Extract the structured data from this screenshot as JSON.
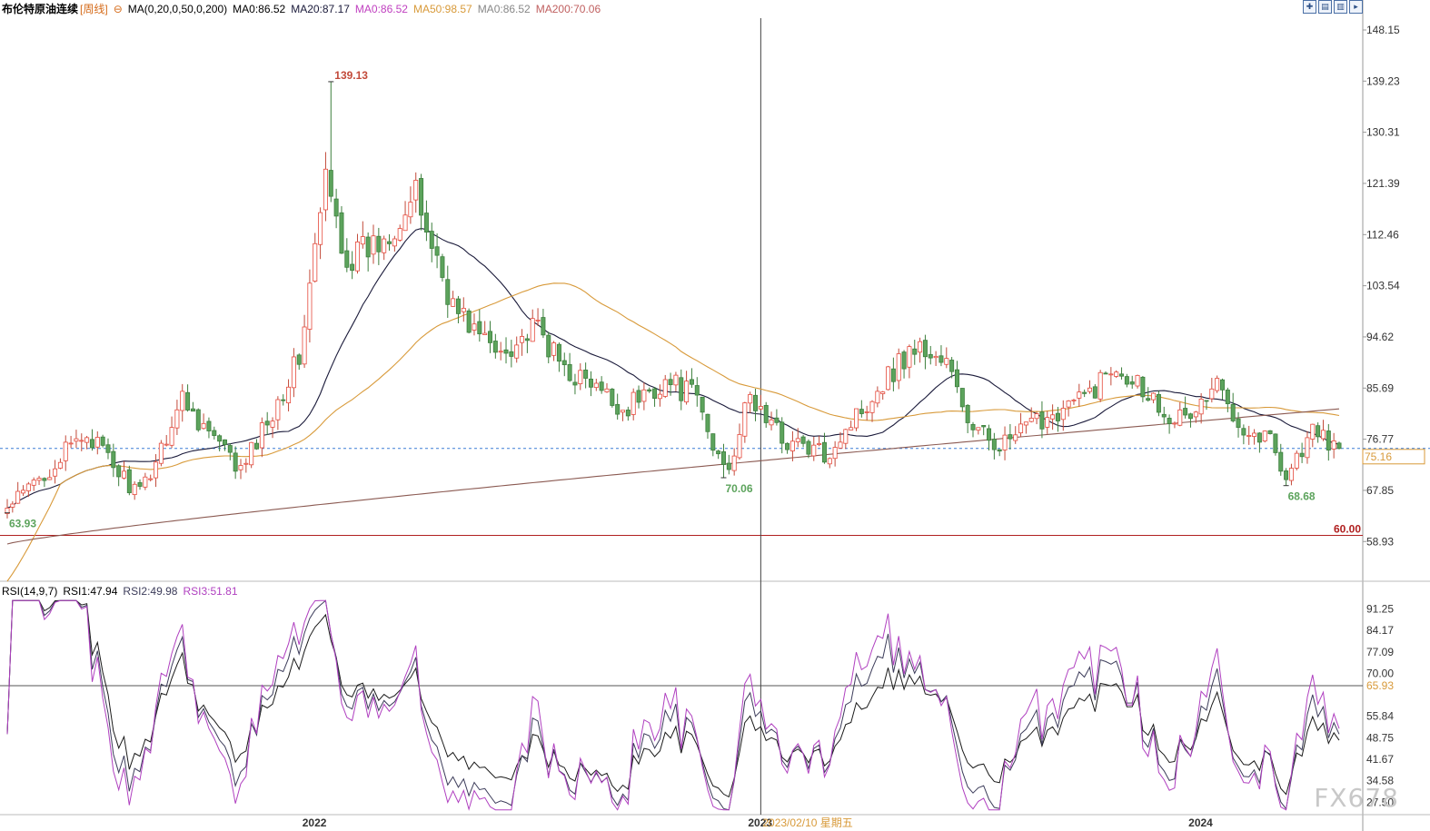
{
  "legend_main": {
    "name": "布伦特原油连续",
    "period": "[周线]",
    "ma_spec": "MA(0,20,0,50,0,200)",
    "ma0": "MA0:86.52",
    "ma20": "MA20:87.17",
    "ma0b": "MA0:86.52",
    "ma50": "MA50:98.57",
    "ma0c": "MA0:86.52",
    "ma200": "MA200:70.06"
  },
  "legend_rsi": {
    "spec": "RSI(14,9,7)",
    "rsi1": "RSI1:47.94",
    "rsi2": "RSI2:49.98",
    "rsi3": "RSI3:51.81"
  },
  "toolbar": {
    "icons": [
      "expand-icon",
      "layout-icon",
      "layout-icon-2",
      "arrow-right-icon"
    ]
  },
  "annotations": {
    "high": "139.13",
    "low_start": "63.93",
    "low_mid": "70.06",
    "low_end": "68.68",
    "hline_label": "60.00",
    "current_price": "75.16",
    "crosshair_date": "2023/02/10 星期五"
  },
  "watermark": "FX678",
  "colors": {
    "up": "#e6493b",
    "down": "#5ca35c",
    "ma20": "#1a1a3a",
    "ma50": "#d89a3a",
    "ma200": "#8b5a52",
    "hline": "#b02020",
    "rsi1": "#1a1a1a",
    "rsi2": "#3c3c5a",
    "rsi3": "#b040c0"
  },
  "chart_data": [
    {
      "type": "candlestick",
      "title": "布伦特原油连续 [周线]",
      "y_ticks": [
        "148.15",
        "139.23",
        "130.31",
        "121.39",
        "112.46",
        "103.54",
        "94.62",
        "85.69",
        "76.77",
        "67.85",
        "58.93"
      ],
      "ylim": [
        52.0,
        151.0
      ],
      "x_ticks": [
        "2022",
        "2023",
        "2024"
      ],
      "horizontal_line": 60.0,
      "current_line": 75.16,
      "anchors": [
        {
          "x": 0,
          "close": 64.5
        },
        {
          "x": 15,
          "close": 78.0
        },
        {
          "x": 20,
          "close": 72.0
        },
        {
          "x": 25,
          "close": 67.0
        },
        {
          "x": 33,
          "close": 84.0
        },
        {
          "x": 38,
          "close": 78.0
        },
        {
          "x": 44,
          "close": 71.0
        },
        {
          "x": 55,
          "close": 91.0
        },
        {
          "x": 60,
          "close": 122.0
        },
        {
          "x": 64,
          "close": 108.0
        },
        {
          "x": 70,
          "close": 111.0
        },
        {
          "x": 77,
          "close": 119.0
        },
        {
          "x": 84,
          "close": 100.0
        },
        {
          "x": 92,
          "close": 92.0
        },
        {
          "x": 100,
          "close": 96.0
        },
        {
          "x": 104,
          "close": 90.0
        },
        {
          "x": 110,
          "close": 86.0
        },
        {
          "x": 116,
          "close": 82.0
        },
        {
          "x": 124,
          "close": 87.0
        },
        {
          "x": 130,
          "close": 84.0
        },
        {
          "x": 133,
          "close": 75.0
        },
        {
          "x": 136,
          "close": 72.5
        },
        {
          "x": 140,
          "close": 84.0
        },
        {
          "x": 146,
          "close": 77.0
        },
        {
          "x": 154,
          "close": 74.0
        },
        {
          "x": 160,
          "close": 81.0
        },
        {
          "x": 165,
          "close": 87.0
        },
        {
          "x": 171,
          "close": 93.0
        },
        {
          "x": 177,
          "close": 90.0
        },
        {
          "x": 182,
          "close": 78.0
        },
        {
          "x": 188,
          "close": 76.0
        },
        {
          "x": 196,
          "close": 81.0
        },
        {
          "x": 203,
          "close": 84.0
        },
        {
          "x": 209,
          "close": 90.0
        },
        {
          "x": 213,
          "close": 87.0
        },
        {
          "x": 218,
          "close": 82.0
        },
        {
          "x": 222,
          "close": 80.0
        },
        {
          "x": 228,
          "close": 86.0
        },
        {
          "x": 234,
          "close": 78.0
        },
        {
          "x": 238,
          "close": 77.0
        },
        {
          "x": 241,
          "close": 70.5
        },
        {
          "x": 246,
          "close": 78.0
        },
        {
          "x": 251,
          "close": 75.16
        }
      ],
      "weeks": 252,
      "special_points": [
        {
          "x": 61,
          "value": 139.13,
          "label": "139.13"
        },
        {
          "x": 0,
          "value": 63.93,
          "label": "63.93"
        },
        {
          "x": 135,
          "value": 70.06,
          "label": "70.06"
        },
        {
          "x": 241,
          "value": 68.68,
          "label": "68.68"
        }
      ],
      "ma": [
        {
          "name": "MA20",
          "period": 20,
          "last": 87.17
        },
        {
          "name": "MA50",
          "period": 50,
          "last": 98.57
        },
        {
          "name": "MA200",
          "period": 200,
          "last": 70.06
        }
      ]
    },
    {
      "type": "line",
      "title": "RSI(14,9,7)",
      "y_ticks": [
        "91.25",
        "84.17",
        "77.09",
        "70.00",
        "65.93",
        "55.84",
        "48.75",
        "41.67",
        "34.58",
        "27.50"
      ],
      "ylim": [
        24.0,
        95.0
      ],
      "reference_line": 65.93,
      "series": [
        {
          "name": "RSI1",
          "last": 47.94
        },
        {
          "name": "RSI2",
          "last": 49.98
        },
        {
          "name": "RSI3",
          "last": 51.81
        }
      ]
    }
  ]
}
